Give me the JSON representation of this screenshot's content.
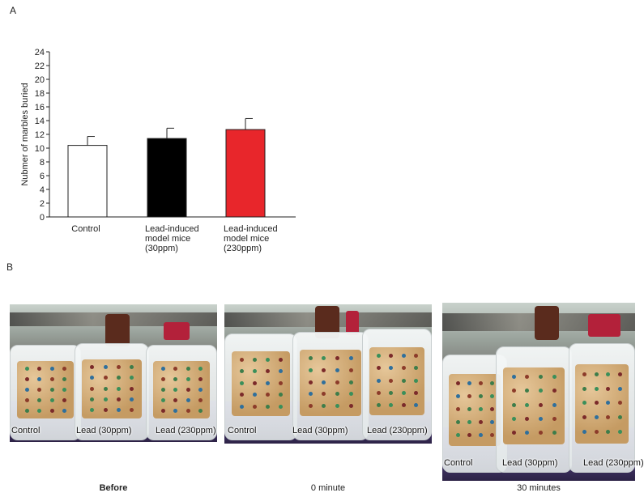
{
  "panels": {
    "a": "A",
    "b": "B"
  },
  "chart_data": {
    "type": "bar",
    "ylabel": "Nubmer of marbles buried",
    "ylim": [
      0,
      24
    ],
    "yticks": [
      0,
      2,
      4,
      6,
      8,
      10,
      12,
      14,
      16,
      18,
      20,
      22,
      24
    ],
    "categories": [
      [
        "Control"
      ],
      [
        "Lead-induced",
        "model mice",
        "(30ppm)"
      ],
      [
        "Lead-induced",
        "model mice",
        "(230ppm)"
      ]
    ],
    "values": [
      10.4,
      11.4,
      12.7
    ],
    "errors": [
      1.3,
      1.5,
      1.6
    ],
    "colors": [
      "#ffffff",
      "#000000",
      "#e8262b"
    ]
  },
  "photos": [
    {
      "labels": [
        "Control",
        "Lead (30ppm)",
        "Lead (230ppm)"
      ],
      "caption": "Before"
    },
    {
      "labels": [
        "Control",
        "Lead (30ppm)",
        "Lead (230ppm)"
      ],
      "caption": "0 minute"
    },
    {
      "labels": [
        "Control",
        "Lead (30ppm)",
        "Lead (230ppm)"
      ],
      "caption": "30 minutes"
    }
  ]
}
